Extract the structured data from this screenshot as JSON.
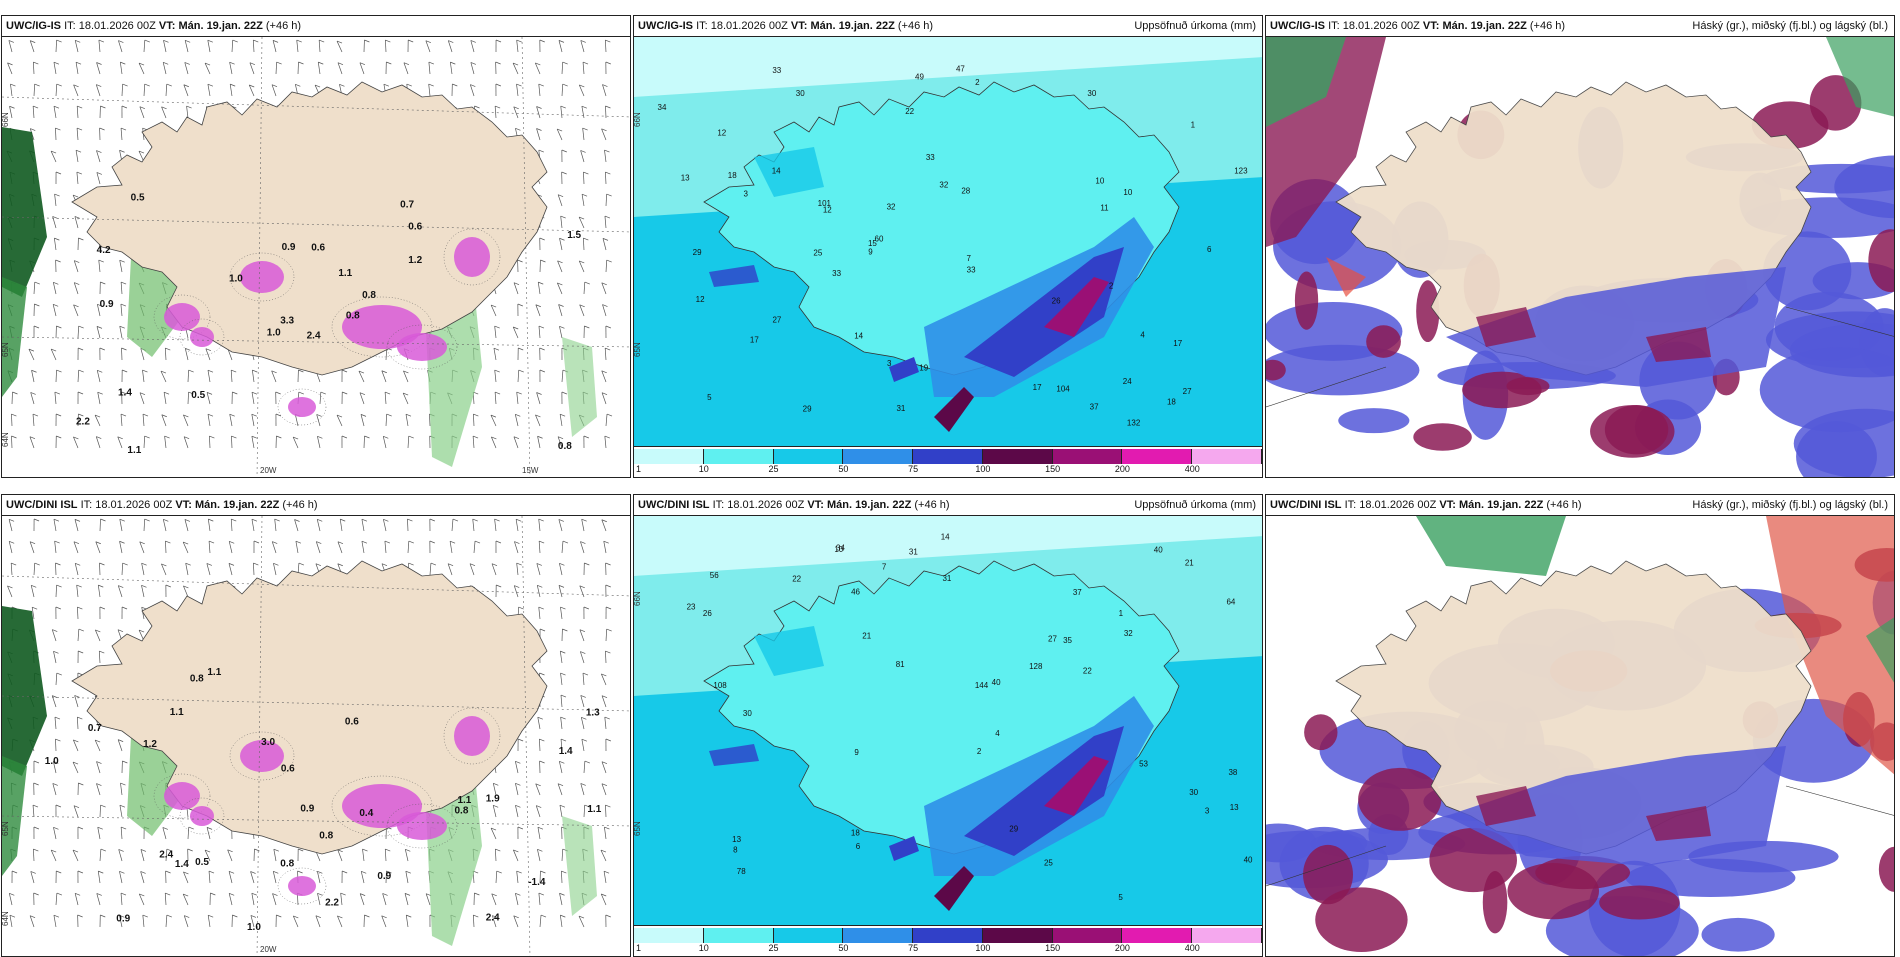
{
  "panels": [
    {
      "model": "UWC/IG-IS",
      "it_label": "IT:",
      "it_value": "18.01.2026 00Z",
      "vt_label": "VT:",
      "vt_value": "Mán. 19.jan. 22Z",
      "lead": "(+46 h)",
      "right_title": "",
      "type": "precip-rate",
      "grid_labels": [
        "66N",
        "65N",
        "64N",
        "20W",
        "15W"
      ]
    },
    {
      "model": "UWC/IG-IS",
      "it_label": "IT:",
      "it_value": "18.01.2026 00Z",
      "vt_label": "VT:",
      "vt_value": "Mán. 19.jan. 22Z",
      "lead": "(+46 h)",
      "right_title": "Uppsöfnuð úrkoma (mm)",
      "type": "accumulated",
      "grid_labels": [
        "66N",
        "65N"
      ]
    },
    {
      "model": "UWC/IG-IS",
      "it_label": "IT:",
      "it_value": "18.01.2026 00Z",
      "vt_label": "VT:",
      "vt_value": "Mán. 19.jan. 22Z",
      "lead": "(+46 h)",
      "right_title": "Háský (gr.), miðský (fj.bl.) og lágský (bl.)",
      "type": "clouds",
      "grid_labels": []
    },
    {
      "model": "UWC/DINI ISL",
      "it_label": "IT:",
      "it_value": "18.01.2026 00Z",
      "vt_label": "VT:",
      "vt_value": "Mán. 19.jan. 22Z",
      "lead": "(+46 h)",
      "right_title": "",
      "type": "precip-rate",
      "grid_labels": [
        "65N",
        "64N",
        "20W"
      ]
    },
    {
      "model": "UWC/DINI ISL",
      "it_label": "IT:",
      "it_value": "18.01.2026 00Z",
      "vt_label": "VT:",
      "vt_value": "Mán. 19.jan. 22Z",
      "lead": "(+46 h)",
      "right_title": "Uppsöfnuð úrkoma (mm)",
      "type": "accumulated",
      "grid_labels": [
        "66N",
        "65N"
      ]
    },
    {
      "model": "UWC/DINI ISL",
      "it_label": "IT:",
      "it_value": "18.01.2026 00Z",
      "vt_label": "VT:",
      "vt_value": "Mán. 19.jan. 22Z",
      "lead": "(+46 h)",
      "right_title": "Háský (gr.), miðský (fj.bl.) og lágský (bl.)",
      "type": "clouds",
      "grid_labels": []
    }
  ],
  "colorbar": {
    "labels": [
      "1",
      "10",
      "25",
      "50",
      "75",
      "100",
      "150",
      "200",
      "400"
    ],
    "colors": [
      "#c8fbfb",
      "#5ff0f0",
      "#17c9e8",
      "#2f8fe8",
      "#3140c8",
      "#5c0848",
      "#9a1075",
      "#e21bb0",
      "#f5a8ee"
    ]
  },
  "rate_labels_top": [
    "2.4",
    "4.2",
    "3.3",
    "2.2",
    "0.8",
    "0.5",
    "0.7",
    "0.6",
    "0.6",
    "0.8",
    "0.5",
    "0.8",
    "0.9",
    "1.5",
    "1.0",
    "1.2",
    "1.1",
    "0.9",
    "1.1",
    "1.4",
    "1.0"
  ],
  "rate_labels_bottom": [
    "1.2",
    "0.7",
    "0.6",
    "0.8",
    "0.5",
    "0.6",
    "1.0",
    "0.4",
    "-1.4",
    "0.8",
    "1.1",
    "1.1",
    "2.4",
    "1.9",
    "0.8",
    "2.2",
    "3.0",
    "0.9",
    "2.4",
    "0.8",
    "1.1",
    "1.4",
    "1.1",
    "1.0",
    "1.4",
    "0.9",
    "1.3",
    "0.9"
  ],
  "accum_labels_top": [
    "17",
    "17",
    "33",
    "29",
    "30",
    "33",
    "31",
    "32",
    "27",
    "28",
    "22",
    "18",
    "30",
    "26",
    "47",
    "60",
    "33",
    "32",
    "24",
    "18",
    "12",
    "33",
    "34",
    "37",
    "29",
    "49",
    "104",
    "123",
    "11",
    "101",
    "132",
    "25",
    "17",
    "13",
    "14",
    "10",
    "12",
    "12",
    "15",
    "14",
    "19",
    "6",
    "2",
    "3",
    "4",
    "5",
    "10",
    "9",
    "7",
    "2",
    "1",
    "3",
    "27"
  ],
  "accum_labels_bottom": [
    "22",
    "27",
    "31",
    "37",
    "40",
    "38",
    "32",
    "35",
    "31",
    "34",
    "21",
    "18",
    "29",
    "30",
    "40",
    "40",
    "25",
    "46",
    "53",
    "64",
    "30",
    "81",
    "78",
    "128",
    "108",
    "144",
    "56",
    "22",
    "14",
    "21",
    "13",
    "10",
    "9",
    "8",
    "6",
    "5",
    "4",
    "3",
    "2",
    "1",
    "7",
    "13",
    "26",
    "23"
  ]
}
